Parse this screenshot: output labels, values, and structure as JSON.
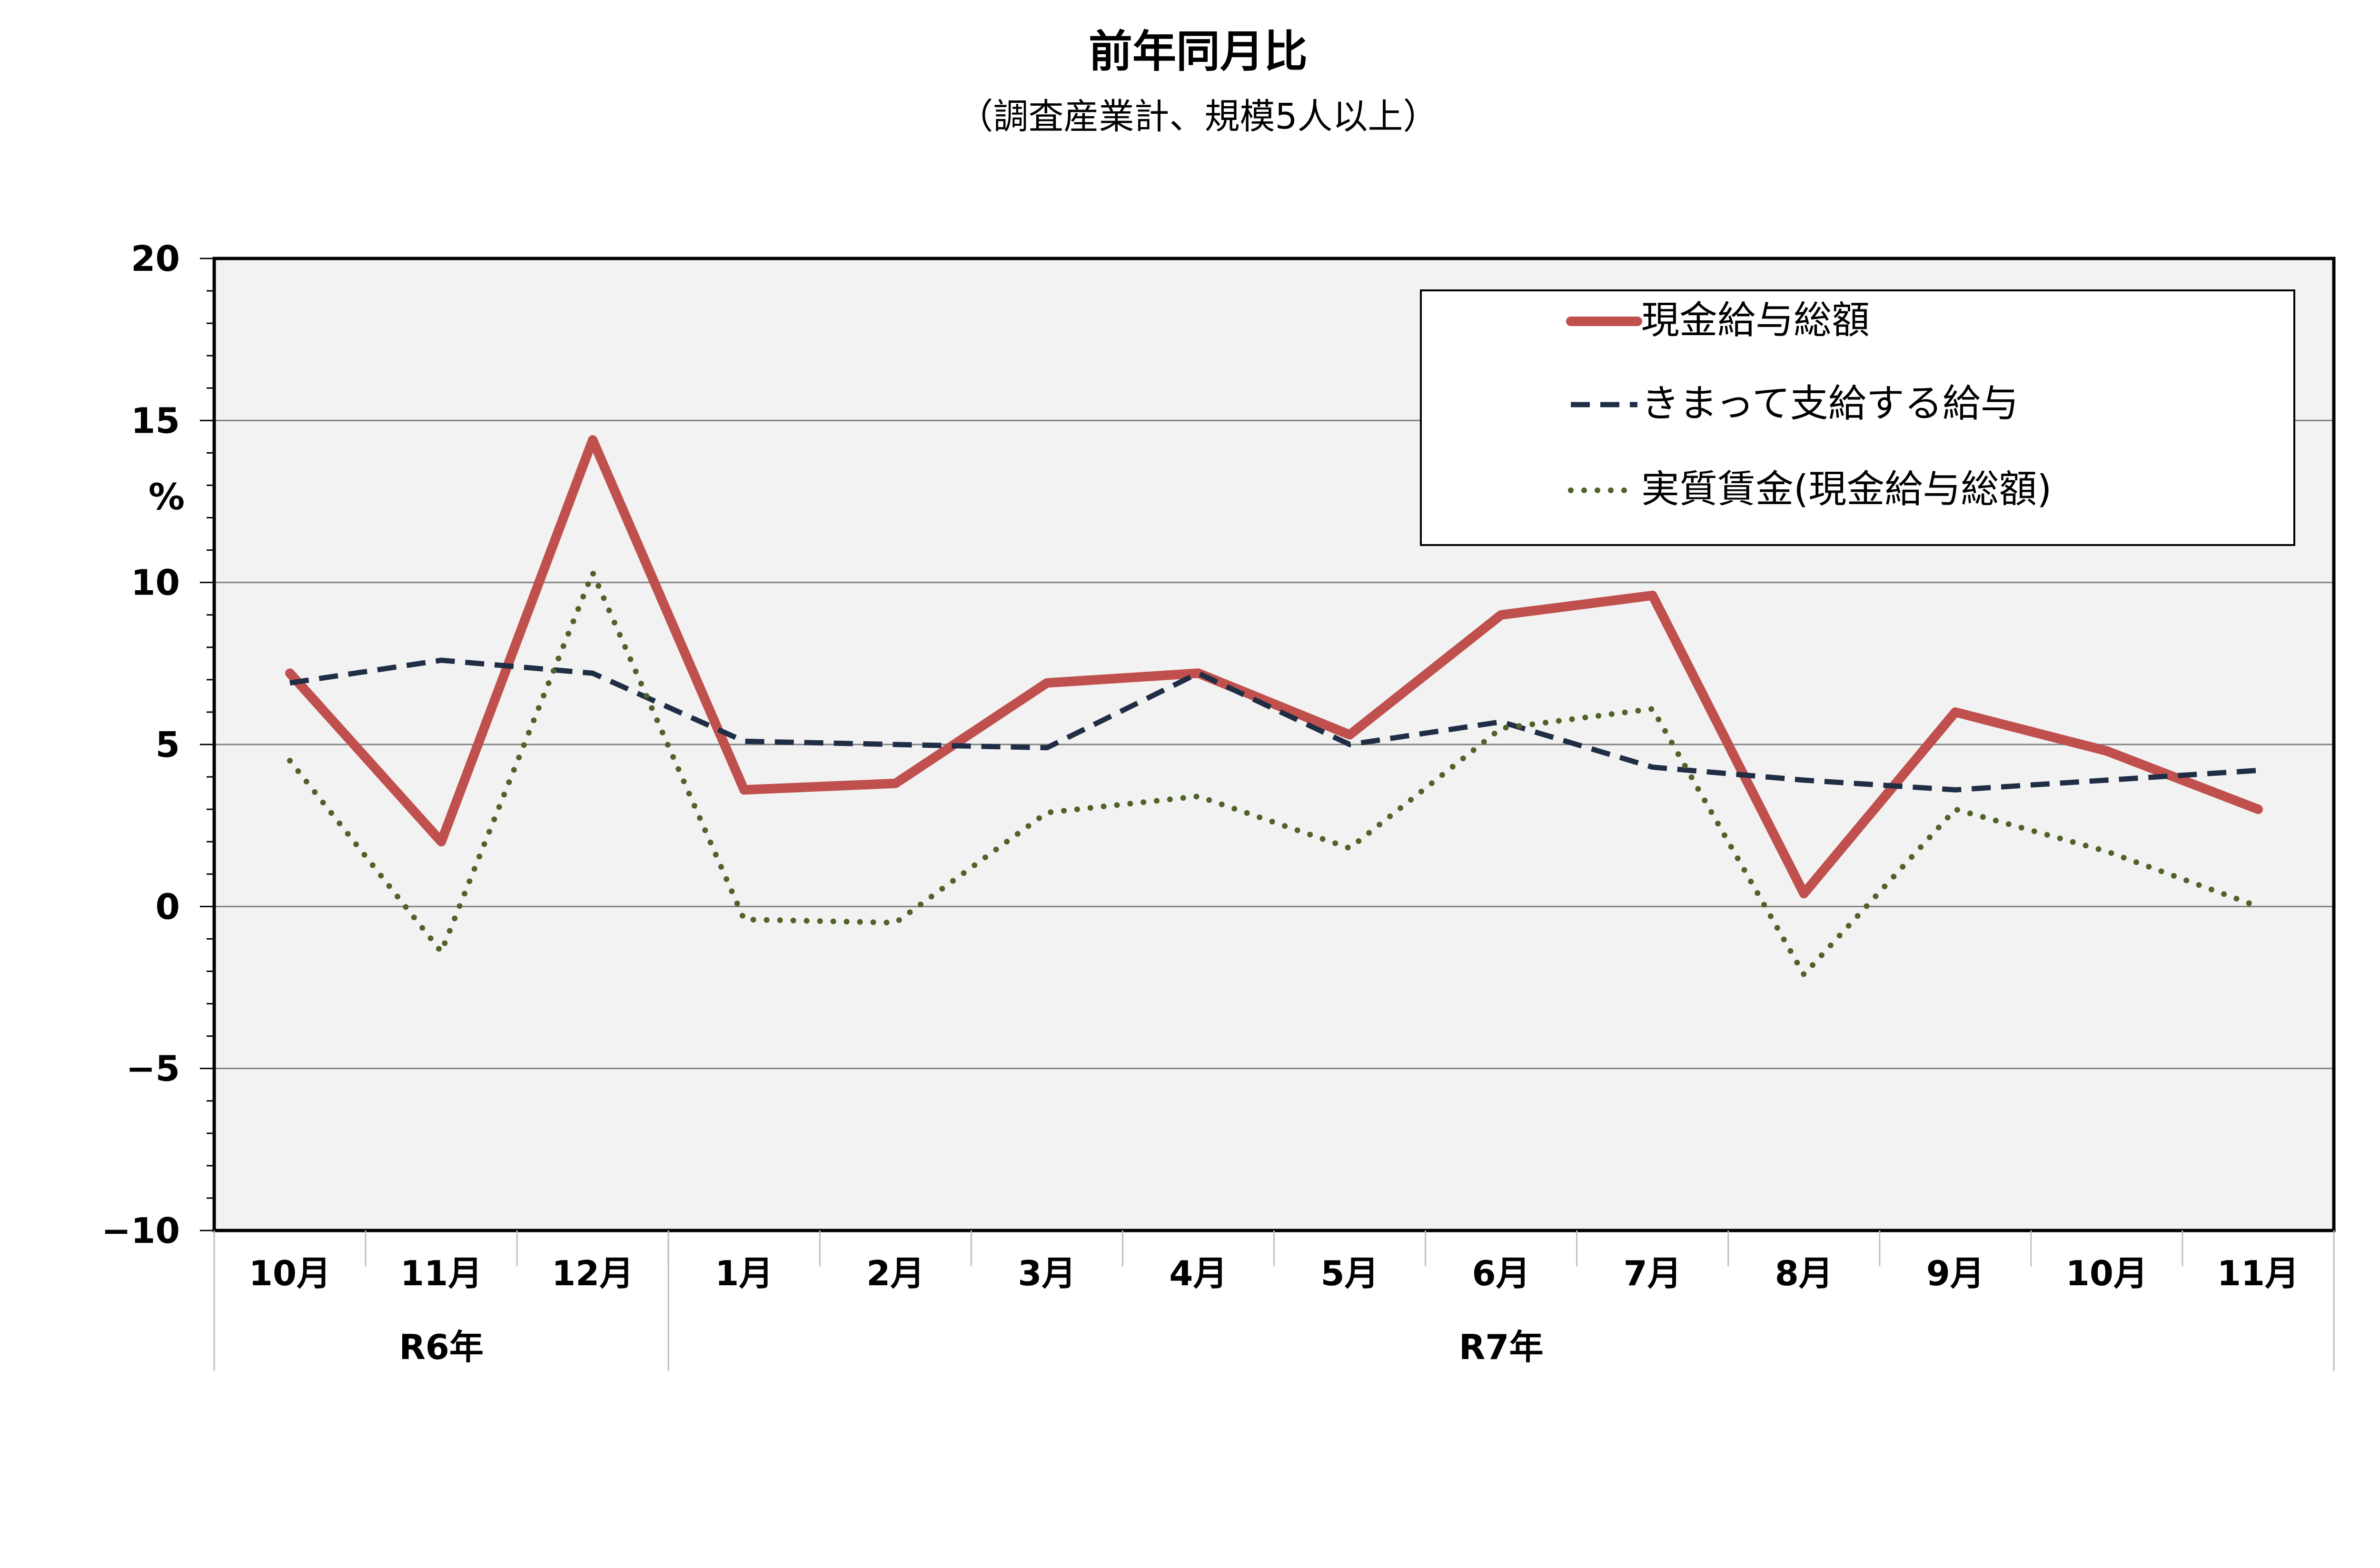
{
  "chart_data": {
    "type": "line",
    "title": "前年同月比",
    "subtitle": "（調査産業計、規模5人以上）",
    "ylabel": "%",
    "ylim": [
      -10,
      20
    ],
    "yticks": [
      "20",
      "15",
      "10",
      "5",
      "0",
      "−5",
      "−10"
    ],
    "categories": [
      "10月",
      "11月",
      "12月",
      "1月",
      "2月",
      "3月",
      "4月",
      "5月",
      "6月",
      "7月",
      "8月",
      "9月",
      "10月",
      "11月"
    ],
    "year_groups": [
      {
        "label": "R6年",
        "start": 0,
        "end": 2
      },
      {
        "label": "R7年",
        "start": 3,
        "end": 13
      }
    ],
    "grid": true,
    "legend_position": "top-right",
    "series": [
      {
        "name": "現金給与総額",
        "style": "solid",
        "color": "#c0504d",
        "values": [
          7.2,
          2.0,
          14.4,
          3.6,
          3.8,
          6.9,
          7.2,
          5.3,
          9.0,
          9.6,
          0.4,
          6.0,
          4.8,
          3.0
        ]
      },
      {
        "name": "きまって支給する給与",
        "style": "dashed",
        "color": "#1f2d45",
        "values": [
          6.9,
          7.6,
          7.2,
          5.1,
          5.0,
          4.9,
          7.2,
          5.0,
          5.7,
          4.3,
          3.9,
          3.6,
          3.9,
          4.2
        ]
      },
      {
        "name": "実質賃金(現金給与総額)",
        "style": "dotted",
        "color": "#4f6228",
        "values": [
          4.5,
          -1.4,
          10.3,
          -0.4,
          -0.5,
          2.9,
          3.4,
          1.8,
          5.5,
          6.1,
          -2.1,
          3.0,
          1.7,
          0.0
        ]
      }
    ]
  }
}
